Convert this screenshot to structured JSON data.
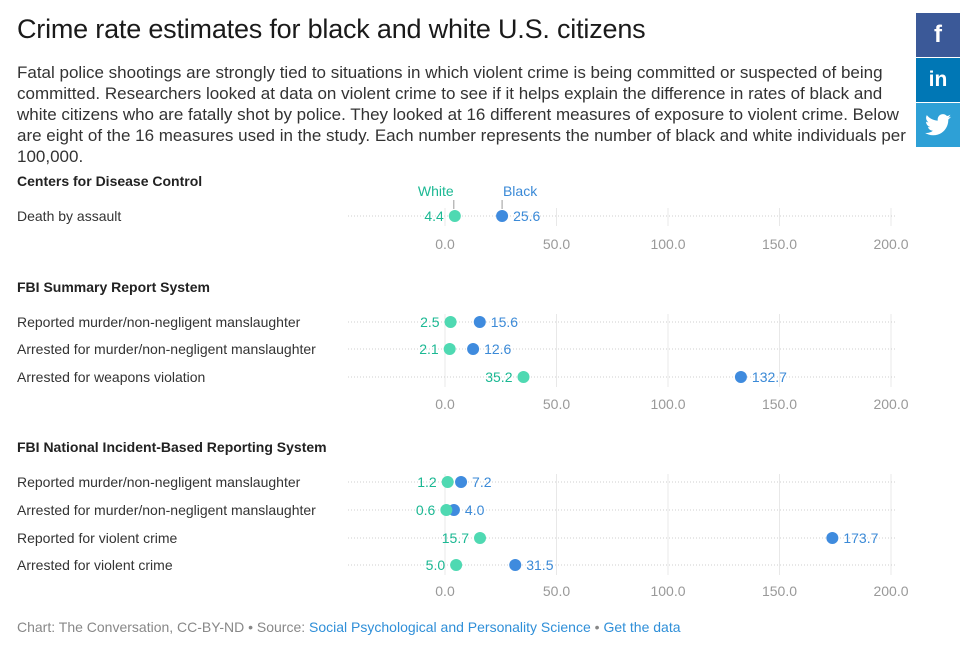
{
  "title": "Crime rate estimates for black and white U.S. citizens",
  "description": "Fatal police shootings are strongly tied to situations in which violent crime is being committed or suspected of being committed. Researchers looked at data on violent crime to see if it helps explain the difference in rates of black and white citizens who are fatally shot by police. They looked at 16 different measures of exposure to violent crime. Below are eight of the 16 measures used in the study. Each number represents the number of black and white individuals per 100,000.",
  "share": {
    "facebook_icon": "facebook-icon",
    "linkedin_icon": "linkedin-icon",
    "twitter_icon": "twitter-icon",
    "facebook_glyph": "f",
    "linkedin_glyph": "in"
  },
  "colors": {
    "white": "#4fd9b2",
    "black": "#3f8bde",
    "white_label": "#1bb893",
    "black_label": "#3b8ad7"
  },
  "footer": {
    "prefix": "Chart: The Conversation, CC-BY-ND • Source: ",
    "source_link": "Social Psychological and Personality Science",
    "separator": " • ",
    "data_link": "Get the data"
  },
  "chart_data": {
    "type": "dot",
    "series": [
      {
        "name": "White"
      },
      {
        "name": "Black"
      }
    ],
    "xlim": [
      0,
      200
    ],
    "xticks": [
      0,
      50,
      100,
      150,
      200
    ],
    "xtick_labels": [
      "0.0",
      "50.0",
      "100.0",
      "150.0",
      "200.0"
    ],
    "grid": true,
    "groups": [
      {
        "name": "Centers for Disease Control",
        "rows": [
          {
            "label": "Death by assault",
            "white": 4.4,
            "black": 25.6,
            "white_label": "4.4",
            "black_label": "25.6"
          }
        ]
      },
      {
        "name": "FBI Summary Report System",
        "rows": [
          {
            "label": "Reported murder/non-negligent manslaughter",
            "white": 2.5,
            "black": 15.6,
            "white_label": "2.5",
            "black_label": "15.6"
          },
          {
            "label": "Arrested for murder/non-negligent manslaughter",
            "white": 2.1,
            "black": 12.6,
            "white_label": "2.1",
            "black_label": "12.6"
          },
          {
            "label": "Arrested for weapons violation",
            "white": 35.2,
            "black": 132.7,
            "white_label": "35.2",
            "black_label": "132.7"
          }
        ]
      },
      {
        "name": "FBI National Incident-Based Reporting System",
        "rows": [
          {
            "label": "Reported murder/non-negligent manslaughter",
            "white": 1.2,
            "black": 7.2,
            "white_label": "1.2",
            "black_label": "7.2"
          },
          {
            "label": "Arrested for murder/non-negligent manslaughter",
            "white": 0.6,
            "black": 4.0,
            "white_label": "0.6",
            "black_label": "4.0"
          },
          {
            "label": "Reported for violent crime",
            "white": 15.7,
            "black": 173.7,
            "white_label": "15.7",
            "black_label": "173.7"
          },
          {
            "label": "Arrested for violent crime",
            "white": 5.0,
            "black": 31.5,
            "white_label": "5.0",
            "black_label": "31.5"
          }
        ]
      }
    ]
  }
}
